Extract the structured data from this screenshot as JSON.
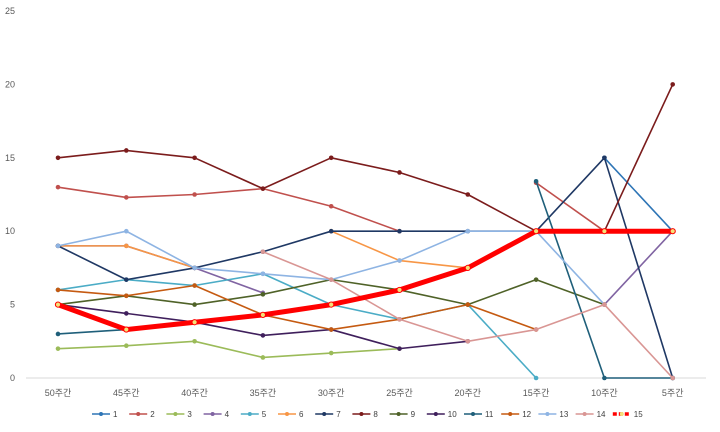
{
  "chart_data": {
    "type": "line",
    "title": "",
    "xlabel": "",
    "ylabel": "",
    "ylim": [
      0,
      25
    ],
    "yticks": [
      "0",
      "5",
      "10",
      "15",
      "20",
      "25"
    ],
    "grid": false,
    "legend_position": "bottom",
    "categories": [
      "50주간",
      "45주간",
      "40주간",
      "35주간",
      "30주간",
      "25주간",
      "20주간",
      "15주간",
      "10주간",
      "5주간"
    ],
    "series": [
      {
        "name": "1",
        "color": "#2e75b6",
        "values": [
          null,
          null,
          null,
          null,
          null,
          null,
          null,
          null,
          15,
          10
        ]
      },
      {
        "name": "2",
        "color": "#c0504d",
        "values": [
          13,
          12.3,
          12.5,
          12.9,
          11.7,
          10,
          null,
          13.3,
          10,
          10
        ]
      },
      {
        "name": "3",
        "color": "#9bbb59",
        "values": [
          2,
          2.2,
          2.5,
          1.4,
          1.7,
          2,
          null,
          null,
          null,
          null
        ]
      },
      {
        "name": "4",
        "color": "#8064a2",
        "values": [
          9,
          9,
          7.5,
          5.8,
          null,
          null,
          null,
          null,
          5,
          10
        ]
      },
      {
        "name": "5",
        "color": "#4bacc6",
        "values": [
          6,
          6.7,
          6.3,
          7.1,
          5,
          4,
          5,
          0,
          null,
          null
        ]
      },
      {
        "name": "6",
        "color": "#f79646",
        "values": [
          9,
          9,
          7.5,
          null,
          10,
          8,
          7.5,
          null,
          null,
          null
        ]
      },
      {
        "name": "7",
        "color": "#1f3864",
        "values": [
          9,
          6.7,
          7.5,
          8.6,
          10,
          10,
          10,
          10,
          15,
          0
        ]
      },
      {
        "name": "8",
        "color": "#7b1c1c",
        "values": [
          15,
          15.5,
          15,
          12.9,
          15,
          14,
          12.5,
          10,
          10,
          20
        ]
      },
      {
        "name": "9",
        "color": "#4f6228",
        "values": [
          5,
          5.6,
          5,
          5.7,
          6.7,
          6,
          5,
          6.7,
          5,
          null
        ]
      },
      {
        "name": "10",
        "color": "#3f1f5c",
        "values": [
          5,
          4.4,
          3.8,
          2.9,
          3.3,
          2,
          2.5,
          null,
          null,
          null
        ]
      },
      {
        "name": "11",
        "color": "#1f5f7a",
        "values": [
          3,
          3.3,
          null,
          null,
          null,
          null,
          null,
          13.4,
          0,
          0
        ]
      },
      {
        "name": "12",
        "color": "#c55a11",
        "values": [
          6,
          5.6,
          6.3,
          4.3,
          3.3,
          4,
          5,
          3.3,
          null,
          null
        ]
      },
      {
        "name": "13",
        "color": "#8eb4e3",
        "values": [
          9,
          10,
          7.5,
          7.1,
          6.7,
          8,
          10,
          10,
          5,
          null
        ]
      },
      {
        "name": "14",
        "color": "#d99694",
        "values": [
          null,
          null,
          null,
          8.6,
          6.7,
          4,
          2.5,
          3.3,
          5,
          0
        ]
      },
      {
        "name": "15",
        "color": "#ff0000",
        "values": [
          5,
          3.3,
          3.8,
          4.3,
          5,
          6,
          7.5,
          10,
          10,
          10
        ]
      }
    ]
  }
}
